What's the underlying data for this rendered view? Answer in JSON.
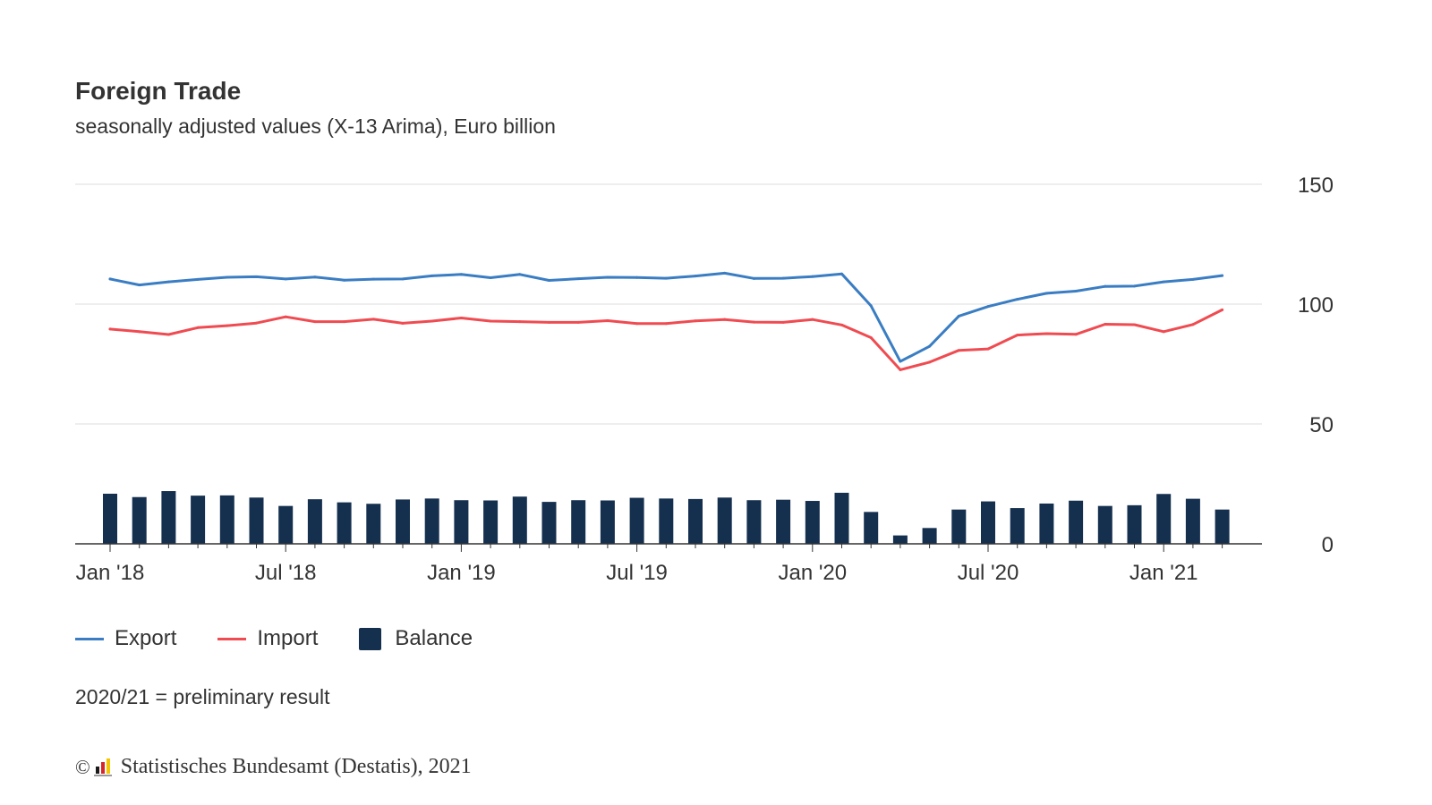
{
  "title": "Foreign Trade",
  "subtitle": "seasonally adjusted values (X-13 Arima), Euro billion",
  "note": "2020/21 = preliminary result",
  "source": {
    "copyright_symbol": "©",
    "text": "Statistisches Bundesamt (Destatis), 2021",
    "logo_icon": "destatis-logo-icon"
  },
  "colors": {
    "export": "#3a7dc3",
    "import": "#ef4b51",
    "balance": "#15304f",
    "grid": "#dddddd",
    "axis": "#333333"
  },
  "chart_data": {
    "type": "line+bar",
    "title": "Foreign Trade",
    "subtitle": "seasonally adjusted values (X-13 Arima), Euro billion",
    "xlabel": "",
    "ylabel": "",
    "ylim": [
      0,
      150
    ],
    "yticks": [
      0,
      50,
      100,
      150
    ],
    "grid": true,
    "legend_position": "bottom-left",
    "y_axis_side": "right",
    "x": [
      "Jan 2018",
      "Feb 2018",
      "Mar 2018",
      "Apr 2018",
      "May 2018",
      "Jun 2018",
      "Jul 2018",
      "Aug 2018",
      "Sep 2018",
      "Oct 2018",
      "Nov 2018",
      "Dec 2018",
      "Jan 2019",
      "Feb 2019",
      "Mar 2019",
      "Apr 2019",
      "May 2019",
      "Jun 2019",
      "Jul 2019",
      "Aug 2019",
      "Sep 2019",
      "Oct 2019",
      "Nov 2019",
      "Dec 2019",
      "Jan 2020",
      "Feb 2020",
      "Mar 2020",
      "Apr 2020",
      "May 2020",
      "Jun 2020",
      "Jul 2020",
      "Aug 2020",
      "Sep 2020",
      "Oct 2020",
      "Nov 2020",
      "Dec 2020",
      "Jan 2021",
      "Feb 2021",
      "Mar 2021"
    ],
    "xtick_labels": [
      {
        "index": 0,
        "label": "Jan '18"
      },
      {
        "index": 6,
        "label": "Jul '18"
      },
      {
        "index": 12,
        "label": "Jan '19"
      },
      {
        "index": 18,
        "label": "Jul '19"
      },
      {
        "index": 24,
        "label": "Jan '20"
      },
      {
        "index": 30,
        "label": "Jul '20"
      },
      {
        "index": 36,
        "label": "Jan '21"
      }
    ],
    "series": [
      {
        "name": "Export",
        "type": "line",
        "values": [
          110.5,
          108.0,
          109.3,
          110.3,
          111.2,
          111.4,
          110.5,
          111.3,
          110.0,
          110.4,
          110.5,
          111.8,
          112.4,
          111.0,
          112.4,
          109.9,
          110.6,
          111.2,
          111.1,
          110.8,
          111.7,
          112.9,
          110.7,
          110.8,
          111.5,
          112.6,
          99.3,
          76.1,
          82.4,
          95.0,
          99.0,
          102.0,
          104.5,
          105.4,
          107.4,
          107.5,
          109.3,
          110.3,
          111.9
        ]
      },
      {
        "name": "Import",
        "type": "line",
        "values": [
          89.6,
          88.5,
          87.3,
          90.2,
          91.0,
          92.1,
          94.7,
          92.7,
          92.7,
          93.7,
          92.0,
          92.9,
          94.2,
          92.9,
          92.7,
          92.4,
          92.4,
          93.1,
          91.9,
          91.9,
          93.0,
          93.6,
          92.5,
          92.4,
          93.6,
          91.3,
          86.0,
          72.6,
          75.8,
          80.7,
          81.3,
          87.1,
          87.7,
          87.4,
          91.6,
          91.4,
          88.5,
          91.5,
          97.6
        ]
      },
      {
        "name": "Balance",
        "type": "bar",
        "values": [
          20.9,
          19.5,
          22.0,
          20.1,
          20.2,
          19.3,
          15.8,
          18.6,
          17.3,
          16.7,
          18.5,
          18.9,
          18.2,
          18.1,
          19.7,
          17.5,
          18.2,
          18.1,
          19.2,
          18.9,
          18.7,
          19.3,
          18.2,
          18.4,
          17.9,
          21.3,
          13.3,
          3.5,
          6.6,
          14.3,
          17.7,
          14.9,
          16.8,
          18.0,
          15.8,
          16.1,
          20.8,
          18.8,
          14.3
        ]
      }
    ]
  }
}
